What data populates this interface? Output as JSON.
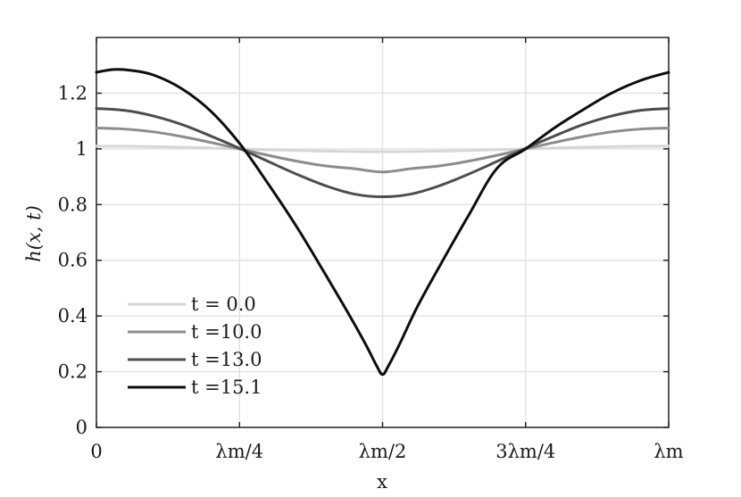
{
  "chart_data": {
    "type": "line",
    "xlabel": "x",
    "ylabel": "h(x, t)",
    "xlim": [
      0,
      1
    ],
    "ylim": [
      0,
      1.4
    ],
    "grid": true,
    "legend_placement": "bottom-left",
    "x_ticks": [
      {
        "value": 0,
        "label": "0"
      },
      {
        "value": 0.25,
        "label": "λm/4"
      },
      {
        "value": 0.5,
        "label": "λm/2"
      },
      {
        "value": 0.75,
        "label": "3λm/4"
      },
      {
        "value": 1,
        "label": "λm"
      }
    ],
    "y_ticks": [
      {
        "value": 0,
        "label": "0"
      },
      {
        "value": 0.2,
        "label": "0.2"
      },
      {
        "value": 0.4,
        "label": "0.4"
      },
      {
        "value": 0.6,
        "label": "0.6"
      },
      {
        "value": 0.8,
        "label": "0.8"
      },
      {
        "value": 1.0,
        "label": "1"
      },
      {
        "value": 1.2,
        "label": "1.2"
      }
    ],
    "series": [
      {
        "name": "t = 0.0",
        "color": "#d6d6d6",
        "x": [
          0,
          0.05,
          0.1,
          0.15,
          0.2,
          0.25,
          0.3,
          0.35,
          0.4,
          0.45,
          0.5,
          0.55,
          0.6,
          0.65,
          0.7,
          0.75,
          0.8,
          0.85,
          0.9,
          0.95,
          1.0
        ],
        "y": [
          1.01,
          1.0095,
          1.0081,
          1.0059,
          1.0031,
          1.0,
          0.9969,
          0.9941,
          0.9919,
          0.9905,
          0.99,
          0.9905,
          0.9919,
          0.9941,
          0.9969,
          1.0,
          1.0031,
          1.0059,
          1.0081,
          1.0095,
          1.01
        ]
      },
      {
        "name": "t =10.0",
        "color": "#8c8c8c",
        "x": [
          0,
          0.05,
          0.1,
          0.15,
          0.2,
          0.25,
          0.3,
          0.35,
          0.4,
          0.45,
          0.5,
          0.55,
          0.6,
          0.65,
          0.7,
          0.75,
          0.8,
          0.85,
          0.9,
          0.95,
          1.0
        ],
        "y": [
          1.075,
          1.071,
          1.061,
          1.044,
          1.023,
          1.0,
          0.977,
          0.956,
          0.939,
          0.929,
          0.917,
          0.929,
          0.939,
          0.956,
          0.977,
          1.0,
          1.023,
          1.044,
          1.061,
          1.071,
          1.075
        ]
      },
      {
        "name": "t =13.0",
        "color": "#4d4d4d",
        "x": [
          0,
          0.05,
          0.1,
          0.15,
          0.2,
          0.25,
          0.3,
          0.35,
          0.4,
          0.45,
          0.5,
          0.55,
          0.6,
          0.65,
          0.7,
          0.75,
          0.8,
          0.85,
          0.9,
          0.95,
          1.0
        ],
        "y": [
          1.145,
          1.138,
          1.118,
          1.087,
          1.046,
          1.002,
          0.955,
          0.909,
          0.868,
          0.838,
          0.828,
          0.838,
          0.868,
          0.909,
          0.955,
          1.002,
          1.046,
          1.087,
          1.118,
          1.138,
          1.145
        ]
      },
      {
        "name": "t =15.1",
        "color": "#0d0d0d",
        "x": [
          0,
          0.03,
          0.06,
          0.1,
          0.15,
          0.2,
          0.25,
          0.3,
          0.35,
          0.4,
          0.44,
          0.47,
          0.49,
          0.5,
          0.51,
          0.53,
          0.56,
          0.6,
          0.65,
          0.7,
          0.75,
          0.8,
          0.85,
          0.9,
          0.95,
          1.0
        ],
        "y": [
          1.275,
          1.285,
          1.282,
          1.265,
          1.215,
          1.135,
          1.02,
          0.875,
          0.72,
          0.55,
          0.41,
          0.3,
          0.22,
          0.19,
          0.22,
          0.3,
          0.43,
          0.58,
          0.76,
          0.93,
          1.0,
          1.075,
          1.14,
          1.2,
          1.245,
          1.275
        ]
      }
    ]
  }
}
